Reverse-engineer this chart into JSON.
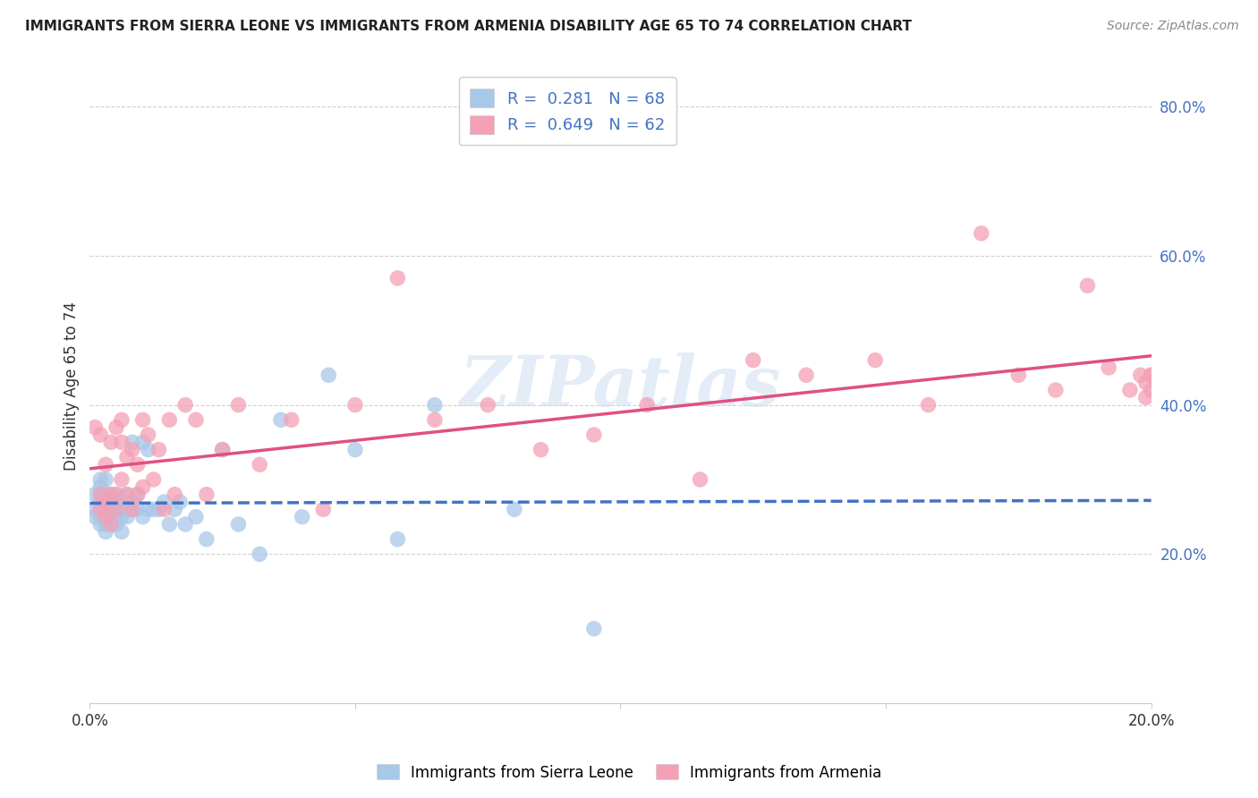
{
  "title": "IMMIGRANTS FROM SIERRA LEONE VS IMMIGRANTS FROM ARMENIA DISABILITY AGE 65 TO 74 CORRELATION CHART",
  "source": "Source: ZipAtlas.com",
  "ylabel": "Disability Age 65 to 74",
  "xmin": 0.0,
  "xmax": 0.2,
  "ymin": 0.0,
  "ymax": 0.85,
  "yticks": [
    0.2,
    0.4,
    0.6,
    0.8
  ],
  "ytick_labels": [
    "20.0%",
    "40.0%",
    "60.0%",
    "80.0%"
  ],
  "xticks": [
    0.0,
    0.05,
    0.1,
    0.15,
    0.2
  ],
  "xtick_labels": [
    "0.0%",
    "",
    "",
    "",
    "20.0%"
  ],
  "sierra_leone_color": "#a8c8e8",
  "armenia_color": "#f4a0b5",
  "sierra_leone_line_color": "#4472c4",
  "armenia_line_color": "#e05080",
  "sierra_leone_R": 0.281,
  "sierra_leone_N": 68,
  "armenia_R": 0.649,
  "armenia_N": 62,
  "legend_label_1": "Immigrants from Sierra Leone",
  "legend_label_2": "Immigrants from Armenia",
  "watermark": "ZIPatlas",
  "sierra_leone_x": [
    0.001,
    0.001,
    0.001,
    0.002,
    0.002,
    0.002,
    0.002,
    0.002,
    0.002,
    0.002,
    0.003,
    0.003,
    0.003,
    0.003,
    0.003,
    0.003,
    0.003,
    0.003,
    0.003,
    0.003,
    0.004,
    0.004,
    0.004,
    0.004,
    0.004,
    0.004,
    0.004,
    0.005,
    0.005,
    0.005,
    0.005,
    0.005,
    0.006,
    0.006,
    0.006,
    0.006,
    0.007,
    0.007,
    0.007,
    0.008,
    0.008,
    0.008,
    0.009,
    0.009,
    0.01,
    0.01,
    0.011,
    0.011,
    0.012,
    0.013,
    0.014,
    0.015,
    0.016,
    0.017,
    0.018,
    0.02,
    0.022,
    0.025,
    0.028,
    0.032,
    0.036,
    0.04,
    0.045,
    0.05,
    0.058,
    0.065,
    0.08,
    0.095
  ],
  "sierra_leone_y": [
    0.26,
    0.28,
    0.25,
    0.27,
    0.29,
    0.25,
    0.26,
    0.24,
    0.28,
    0.3,
    0.25,
    0.27,
    0.26,
    0.23,
    0.28,
    0.25,
    0.27,
    0.26,
    0.24,
    0.3,
    0.26,
    0.25,
    0.27,
    0.24,
    0.26,
    0.28,
    0.25,
    0.27,
    0.26,
    0.25,
    0.28,
    0.24,
    0.25,
    0.27,
    0.26,
    0.23,
    0.28,
    0.26,
    0.25,
    0.35,
    0.26,
    0.27,
    0.28,
    0.26,
    0.35,
    0.25,
    0.34,
    0.26,
    0.26,
    0.26,
    0.27,
    0.24,
    0.26,
    0.27,
    0.24,
    0.25,
    0.22,
    0.34,
    0.24,
    0.2,
    0.38,
    0.25,
    0.44,
    0.34,
    0.22,
    0.4,
    0.26,
    0.1
  ],
  "armenia_x": [
    0.001,
    0.002,
    0.002,
    0.002,
    0.003,
    0.003,
    0.003,
    0.004,
    0.004,
    0.004,
    0.005,
    0.005,
    0.005,
    0.006,
    0.006,
    0.006,
    0.007,
    0.007,
    0.008,
    0.008,
    0.009,
    0.009,
    0.01,
    0.01,
    0.011,
    0.012,
    0.013,
    0.014,
    0.015,
    0.016,
    0.018,
    0.02,
    0.022,
    0.025,
    0.028,
    0.032,
    0.038,
    0.044,
    0.05,
    0.058,
    0.065,
    0.075,
    0.085,
    0.095,
    0.105,
    0.115,
    0.125,
    0.135,
    0.148,
    0.158,
    0.168,
    0.175,
    0.182,
    0.188,
    0.192,
    0.196,
    0.198,
    0.199,
    0.199,
    0.2,
    0.2,
    0.2
  ],
  "armenia_y": [
    0.37,
    0.26,
    0.28,
    0.36,
    0.25,
    0.27,
    0.32,
    0.24,
    0.28,
    0.35,
    0.28,
    0.37,
    0.26,
    0.35,
    0.3,
    0.38,
    0.33,
    0.28,
    0.34,
    0.26,
    0.32,
    0.28,
    0.29,
    0.38,
    0.36,
    0.3,
    0.34,
    0.26,
    0.38,
    0.28,
    0.4,
    0.38,
    0.28,
    0.34,
    0.4,
    0.32,
    0.38,
    0.26,
    0.4,
    0.57,
    0.38,
    0.4,
    0.34,
    0.36,
    0.4,
    0.3,
    0.46,
    0.44,
    0.46,
    0.4,
    0.63,
    0.44,
    0.42,
    0.56,
    0.45,
    0.42,
    0.44,
    0.41,
    0.43,
    0.44,
    0.42,
    0.44
  ]
}
